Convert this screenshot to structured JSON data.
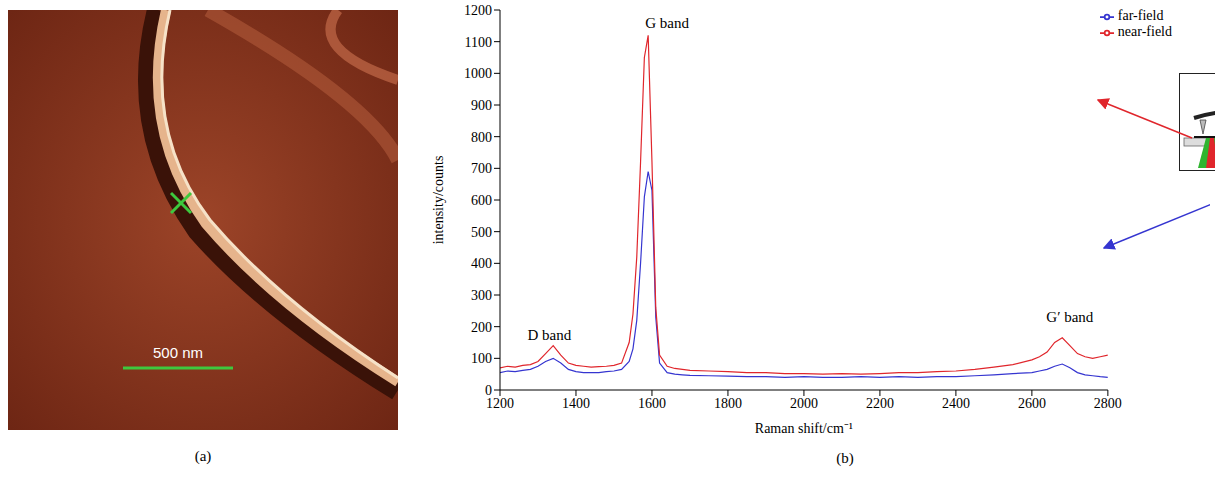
{
  "image_panel": {
    "label": "(a)",
    "scale_bar": "500 nm"
  },
  "chart_data": {
    "type": "line",
    "label": "(b)",
    "x_label": "Raman shift/cm⁻¹",
    "y_label": "intensity/counts",
    "x": [
      1200,
      1220,
      1240,
      1260,
      1280,
      1300,
      1320,
      1340,
      1360,
      1380,
      1400,
      1420,
      1440,
      1460,
      1480,
      1500,
      1520,
      1540,
      1550,
      1560,
      1570,
      1580,
      1590,
      1600,
      1610,
      1620,
      1640,
      1660,
      1680,
      1700,
      1750,
      1800,
      1850,
      1900,
      1950,
      2000,
      2050,
      2100,
      2150,
      2200,
      2250,
      2300,
      2350,
      2400,
      2450,
      2500,
      2550,
      2600,
      2620,
      2640,
      2660,
      2680,
      2700,
      2720,
      2740,
      2760,
      2780,
      2800
    ],
    "series": [
      {
        "name": "far-field",
        "color": "#3535d0",
        "values": [
          55,
          60,
          58,
          62,
          65,
          75,
          90,
          100,
          85,
          65,
          58,
          55,
          55,
          55,
          58,
          60,
          65,
          90,
          130,
          220,
          400,
          610,
          690,
          630,
          230,
          85,
          55,
          50,
          48,
          46,
          45,
          44,
          42,
          42,
          40,
          42,
          40,
          40,
          42,
          40,
          42,
          40,
          42,
          42,
          45,
          48,
          52,
          55,
          60,
          65,
          75,
          82,
          70,
          55,
          48,
          45,
          42,
          40
        ]
      },
      {
        "name": "near-field",
        "color": "#e0262c",
        "values": [
          70,
          75,
          72,
          78,
          80,
          90,
          115,
          140,
          110,
          85,
          78,
          75,
          72,
          74,
          75,
          78,
          85,
          150,
          240,
          420,
          720,
          1050,
          1120,
          720,
          260,
          110,
          75,
          68,
          65,
          62,
          60,
          58,
          55,
          55,
          52,
          52,
          50,
          52,
          50,
          52,
          55,
          55,
          58,
          60,
          65,
          72,
          80,
          95,
          105,
          120,
          150,
          165,
          140,
          115,
          105,
          100,
          105,
          110
        ]
      }
    ],
    "xlim": [
      1200,
      2800
    ],
    "xticks": [
      1200,
      1400,
      1600,
      1800,
      2000,
      2200,
      2400,
      2600,
      2800
    ],
    "ylim": [
      0,
      1200
    ],
    "yticks": [
      0,
      100,
      200,
      300,
      400,
      500,
      600,
      700,
      800,
      900,
      1000,
      1100,
      1200
    ],
    "legend": "top-right",
    "annotations": [
      {
        "text": "D band",
        "x": 1330,
        "y": 175
      },
      {
        "text": "G band",
        "x": 1640,
        "y": 1160
      },
      {
        "text": "G′ band",
        "x": 2700,
        "y": 230
      }
    ]
  }
}
